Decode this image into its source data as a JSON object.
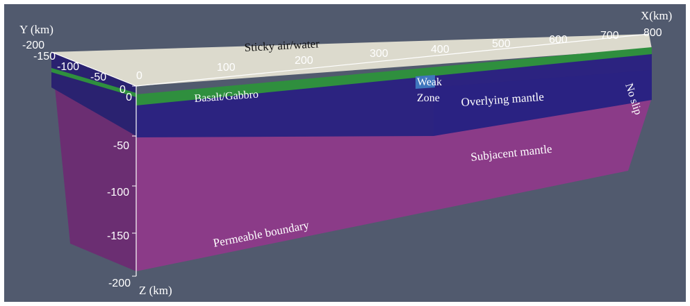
{
  "axes": {
    "x_title": "X(km)",
    "y_title": "Y (km)",
    "z_title": "Z (km)",
    "x_ticks": [
      "0",
      "100",
      "200",
      "300",
      "400",
      "500",
      "600",
      "700",
      "800"
    ],
    "y_ticks": [
      "-200",
      "-150",
      "-100",
      "-50",
      "0"
    ],
    "z_ticks": [
      "0",
      "-50",
      "-100",
      "-150",
      "-200"
    ]
  },
  "layers": {
    "sticky_air": "Sticky air/water",
    "basalt": "Basalt/Gabbro",
    "weak_zone_line1": "Weak",
    "weak_zone_line2": "Zone",
    "overlying_mantle": "Overlying mantle",
    "subjacent_mantle": "Subjacent mantle"
  },
  "boundaries": {
    "front_face": "Permeable boundary",
    "right_face": "No slip"
  },
  "colors": {
    "background": "#515a6e",
    "sticky_air": "#d9d8cc",
    "basalt": "#2e8a3c",
    "overlying_mantle": "#2d2480",
    "subjacent_mantle": "#8a3a86",
    "weak_zone": "#3b72b8"
  }
}
